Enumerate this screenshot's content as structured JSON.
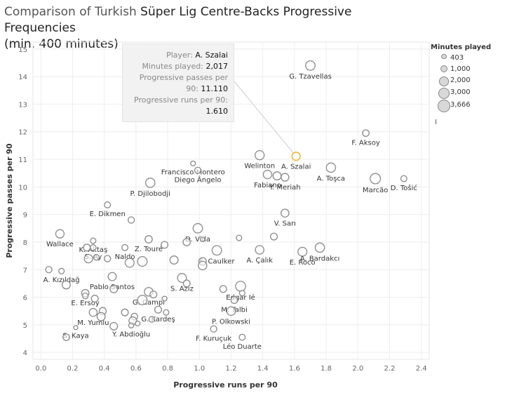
{
  "title": {
    "part1": "Comparison of Turkish",
    "part2": "Süper Lig Centre-Backs Progressive Frequencies",
    "line2": "(min. 400 minutes)"
  },
  "legend": {
    "title": "Minutes played",
    "items": [
      {
        "label": "403",
        "value": 403
      },
      {
        "label": "1,000",
        "value": 1000
      },
      {
        "label": "2,000",
        "value": 2000
      },
      {
        "label": "3,000",
        "value": 3000
      },
      {
        "label": "3,666",
        "value": 3666
      }
    ],
    "extra": "I"
  },
  "tooltip": {
    "player_label": "Player:",
    "player_value": "A. Szalai",
    "minutes_label": "Minutes played:",
    "minutes_value": "2,017",
    "passes_label_1": "Progressive passes per",
    "passes_label_2": "90:",
    "passes_value": "11.110",
    "runs_label": "Progressive runs per 90:",
    "runs_value": "1.610"
  },
  "colors": {
    "point_stroke": "#8a8a8a",
    "highlight": "#f0b429",
    "axis_text": "#666666"
  },
  "chart_data": {
    "type": "scatter",
    "title": "Comparison of Turkish Süper Lig Centre-Backs Progressive Frequencies (min. 400 minutes)",
    "xlabel": "Progressive runs per 90",
    "ylabel": "Progressive passes per 90",
    "xlim": [
      -0.05,
      2.45
    ],
    "ylim": [
      3.75,
      15.25
    ],
    "xticks": [
      "0.0",
      "0.2",
      "0.4",
      "0.6",
      "0.8",
      "1.0",
      "1.2",
      "1.4",
      "1.6",
      "1.8",
      "2.0",
      "2.2",
      "2.4"
    ],
    "yticks": [
      "4",
      "5",
      "6",
      "7",
      "8",
      "9",
      "10",
      "11",
      "12",
      "13",
      "14",
      "15"
    ],
    "grid": true,
    "legend_position": "right",
    "size_encoding": "Minutes played",
    "highlighted": "A. Szalai",
    "points": [
      {
        "x": 1.7,
        "y": 14.4,
        "m": 2700,
        "label": "G. Tzavellas"
      },
      {
        "x": 2.05,
        "y": 11.95,
        "m": 1300,
        "label": "F. Aksoy"
      },
      {
        "x": 1.61,
        "y": 11.11,
        "m": 2017,
        "label": "A. Szalai",
        "hl": true
      },
      {
        "x": 1.38,
        "y": 11.15,
        "m": 2500,
        "label": "Welinton"
      },
      {
        "x": 1.83,
        "y": 10.7,
        "m": 2600,
        "label": "A. Toşca"
      },
      {
        "x": 1.43,
        "y": 10.45,
        "m": 2200,
        "label": "Fabiano"
      },
      {
        "x": 1.49,
        "y": 10.4,
        "m": 2000,
        "label": ""
      },
      {
        "x": 1.54,
        "y": 10.35,
        "m": 1800,
        "label": "Y. Meriah"
      },
      {
        "x": 2.11,
        "y": 10.3,
        "m": 3200,
        "label": "Marcão"
      },
      {
        "x": 2.29,
        "y": 10.3,
        "m": 1100,
        "label": "D. Tošić"
      },
      {
        "x": 0.96,
        "y": 10.85,
        "m": 700,
        "label": "Francisco Montero"
      },
      {
        "x": 0.99,
        "y": 10.6,
        "m": 1200,
        "label": "Diego Ângelo"
      },
      {
        "x": 0.69,
        "y": 10.15,
        "m": 2600,
        "label": "P. Djilobodji"
      },
      {
        "x": 0.42,
        "y": 9.35,
        "m": 1100,
        "label": "E. Dikmen"
      },
      {
        "x": 0.57,
        "y": 8.8,
        "m": 1200,
        "label": ""
      },
      {
        "x": 1.54,
        "y": 9.05,
        "m": 1900,
        "label": "V. Sarı"
      },
      {
        "x": 0.12,
        "y": 8.3,
        "m": 2100,
        "label": "Wallace"
      },
      {
        "x": 0.33,
        "y": 8.05,
        "m": 900,
        "label": "K. Aktaş"
      },
      {
        "x": 0.29,
        "y": 7.8,
        "m": 1400,
        "label": ""
      },
      {
        "x": 0.33,
        "y": 7.8,
        "m": 1000,
        "label": "S. Ay"
      },
      {
        "x": 0.53,
        "y": 7.8,
        "m": 1100,
        "label": "Naldo"
      },
      {
        "x": 0.68,
        "y": 8.1,
        "m": 1600,
        "label": "Z. Touré"
      },
      {
        "x": 0.99,
        "y": 8.5,
        "m": 2700,
        "label": "D. Vida"
      },
      {
        "x": 0.92,
        "y": 8.0,
        "m": 1600,
        "label": ""
      },
      {
        "x": 1.02,
        "y": 8.1,
        "m": 600,
        "label": ""
      },
      {
        "x": 1.25,
        "y": 8.15,
        "m": 900,
        "label": ""
      },
      {
        "x": 1.47,
        "y": 8.2,
        "m": 1400,
        "label": ""
      },
      {
        "x": 1.11,
        "y": 7.7,
        "m": 2700,
        "label": "S. Caulker"
      },
      {
        "x": 1.38,
        "y": 7.72,
        "m": 2200,
        "label": "A. Çalık"
      },
      {
        "x": 1.65,
        "y": 7.65,
        "m": 2400,
        "label": "E. Roco"
      },
      {
        "x": 1.76,
        "y": 7.8,
        "m": 2600,
        "label": "A. Bardakcı"
      },
      {
        "x": 0.78,
        "y": 7.9,
        "m": 1400,
        "label": ""
      },
      {
        "x": 0.64,
        "y": 7.3,
        "m": 2800,
        "label": ""
      },
      {
        "x": 0.56,
        "y": 7.25,
        "m": 2400,
        "label": ""
      },
      {
        "x": 0.3,
        "y": 7.4,
        "m": 2100,
        "label": ""
      },
      {
        "x": 0.35,
        "y": 7.45,
        "m": 1000,
        "label": ""
      },
      {
        "x": 0.42,
        "y": 7.4,
        "m": 1200,
        "label": ""
      },
      {
        "x": 0.84,
        "y": 7.35,
        "m": 2000,
        "label": ""
      },
      {
        "x": 1.02,
        "y": 7.3,
        "m": 1700,
        "label": ""
      },
      {
        "x": 1.02,
        "y": 7.15,
        "m": 2200,
        "label": ""
      },
      {
        "x": 0.05,
        "y": 7.0,
        "m": 1200,
        "label": ""
      },
      {
        "x": 0.13,
        "y": 6.95,
        "m": 900,
        "label": "A. Kızıldağ"
      },
      {
        "x": 0.45,
        "y": 6.75,
        "m": 2000,
        "label": "Pablo Santos"
      },
      {
        "x": 0.89,
        "y": 6.7,
        "m": 2400,
        "label": "S. Aziz"
      },
      {
        "x": 0.92,
        "y": 6.5,
        "m": 1400,
        "label": ""
      },
      {
        "x": 0.16,
        "y": 6.45,
        "m": 2000,
        "label": ""
      },
      {
        "x": 1.26,
        "y": 6.4,
        "m": 3000,
        "label": "Edgar Ié"
      },
      {
        "x": 1.15,
        "y": 6.3,
        "m": 1400,
        "label": ""
      },
      {
        "x": 0.46,
        "y": 6.3,
        "m": 1700,
        "label": ""
      },
      {
        "x": 0.28,
        "y": 6.15,
        "m": 1600,
        "label": "E. Ersoy"
      },
      {
        "x": 0.34,
        "y": 5.95,
        "m": 1400,
        "label": ""
      },
      {
        "x": 0.68,
        "y": 6.2,
        "m": 2200,
        "label": "G. Campi"
      },
      {
        "x": 0.71,
        "y": 6.1,
        "m": 1400,
        "label": ""
      },
      {
        "x": 0.64,
        "y": 5.9,
        "m": 2700,
        "label": ""
      },
      {
        "x": 0.78,
        "y": 5.95,
        "m": 700,
        "label": ""
      },
      {
        "x": 1.27,
        "y": 6.15,
        "m": 900,
        "label": ""
      },
      {
        "x": 1.22,
        "y": 5.9,
        "m": 1400,
        "label": "M. Talbi"
      },
      {
        "x": 0.28,
        "y": 6.05,
        "m": 1000,
        "label": ""
      },
      {
        "x": 0.39,
        "y": 5.5,
        "m": 1500,
        "label": ""
      },
      {
        "x": 0.33,
        "y": 5.45,
        "m": 1900,
        "label": "M. Yumlu"
      },
      {
        "x": 0.38,
        "y": 5.3,
        "m": 2000,
        "label": ""
      },
      {
        "x": 0.53,
        "y": 5.45,
        "m": 1400,
        "label": ""
      },
      {
        "x": 0.59,
        "y": 5.3,
        "m": 1300,
        "label": ""
      },
      {
        "x": 0.58,
        "y": 5.15,
        "m": 1800,
        "label": ""
      },
      {
        "x": 0.74,
        "y": 5.55,
        "m": 1400,
        "label": "G. Kardeş"
      },
      {
        "x": 0.79,
        "y": 5.45,
        "m": 900,
        "label": ""
      },
      {
        "x": 0.7,
        "y": 5.2,
        "m": 1000,
        "label": ""
      },
      {
        "x": 1.2,
        "y": 5.5,
        "m": 2200,
        "label": "P. Olkowski"
      },
      {
        "x": 0.22,
        "y": 4.9,
        "m": 500,
        "label": "S. Kaya"
      },
      {
        "x": 0.46,
        "y": 4.95,
        "m": 1700,
        "label": ""
      },
      {
        "x": 0.57,
        "y": 4.98,
        "m": 800,
        "label": "Y. Abdioğlu"
      },
      {
        "x": 0.61,
        "y": 5.05,
        "m": 700,
        "label": ""
      },
      {
        "x": 1.09,
        "y": 4.85,
        "m": 1200,
        "label": "F. Kuruçuk"
      },
      {
        "x": 0.16,
        "y": 4.55,
        "m": 1300,
        "label": ""
      },
      {
        "x": 1.27,
        "y": 4.55,
        "m": 1100,
        "label": "Léo Duarte"
      }
    ]
  }
}
